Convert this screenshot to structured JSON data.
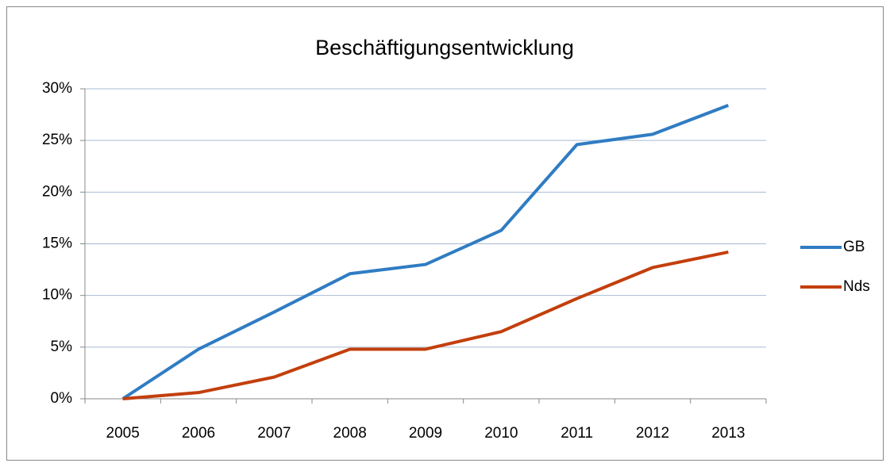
{
  "chart_data": {
    "type": "line",
    "title": "Beschäftigungsentwicklung",
    "categories": [
      "2005",
      "2006",
      "2007",
      "2008",
      "2009",
      "2010",
      "2011",
      "2012",
      "2013"
    ],
    "series": [
      {
        "name": "GB",
        "color": "#2f7cc3",
        "values": [
          0,
          4.8,
          8.4,
          12.1,
          13.0,
          16.3,
          24.6,
          25.6,
          28.4
        ]
      },
      {
        "name": "Nds",
        "color": "#c33f0c",
        "values": [
          0,
          0.6,
          2.1,
          4.8,
          4.8,
          6.5,
          9.7,
          12.7,
          14.2
        ]
      }
    ],
    "ylim": [
      0,
      30
    ],
    "yticks": [
      {
        "value": 0,
        "label": "0%"
      },
      {
        "value": 5,
        "label": "5%"
      },
      {
        "value": 10,
        "label": "10%"
      },
      {
        "value": 15,
        "label": "15%"
      },
      {
        "value": 20,
        "label": "20%"
      },
      {
        "value": 25,
        "label": "25%"
      },
      {
        "value": 30,
        "label": "30%"
      }
    ],
    "grid": true,
    "legend": "right"
  }
}
